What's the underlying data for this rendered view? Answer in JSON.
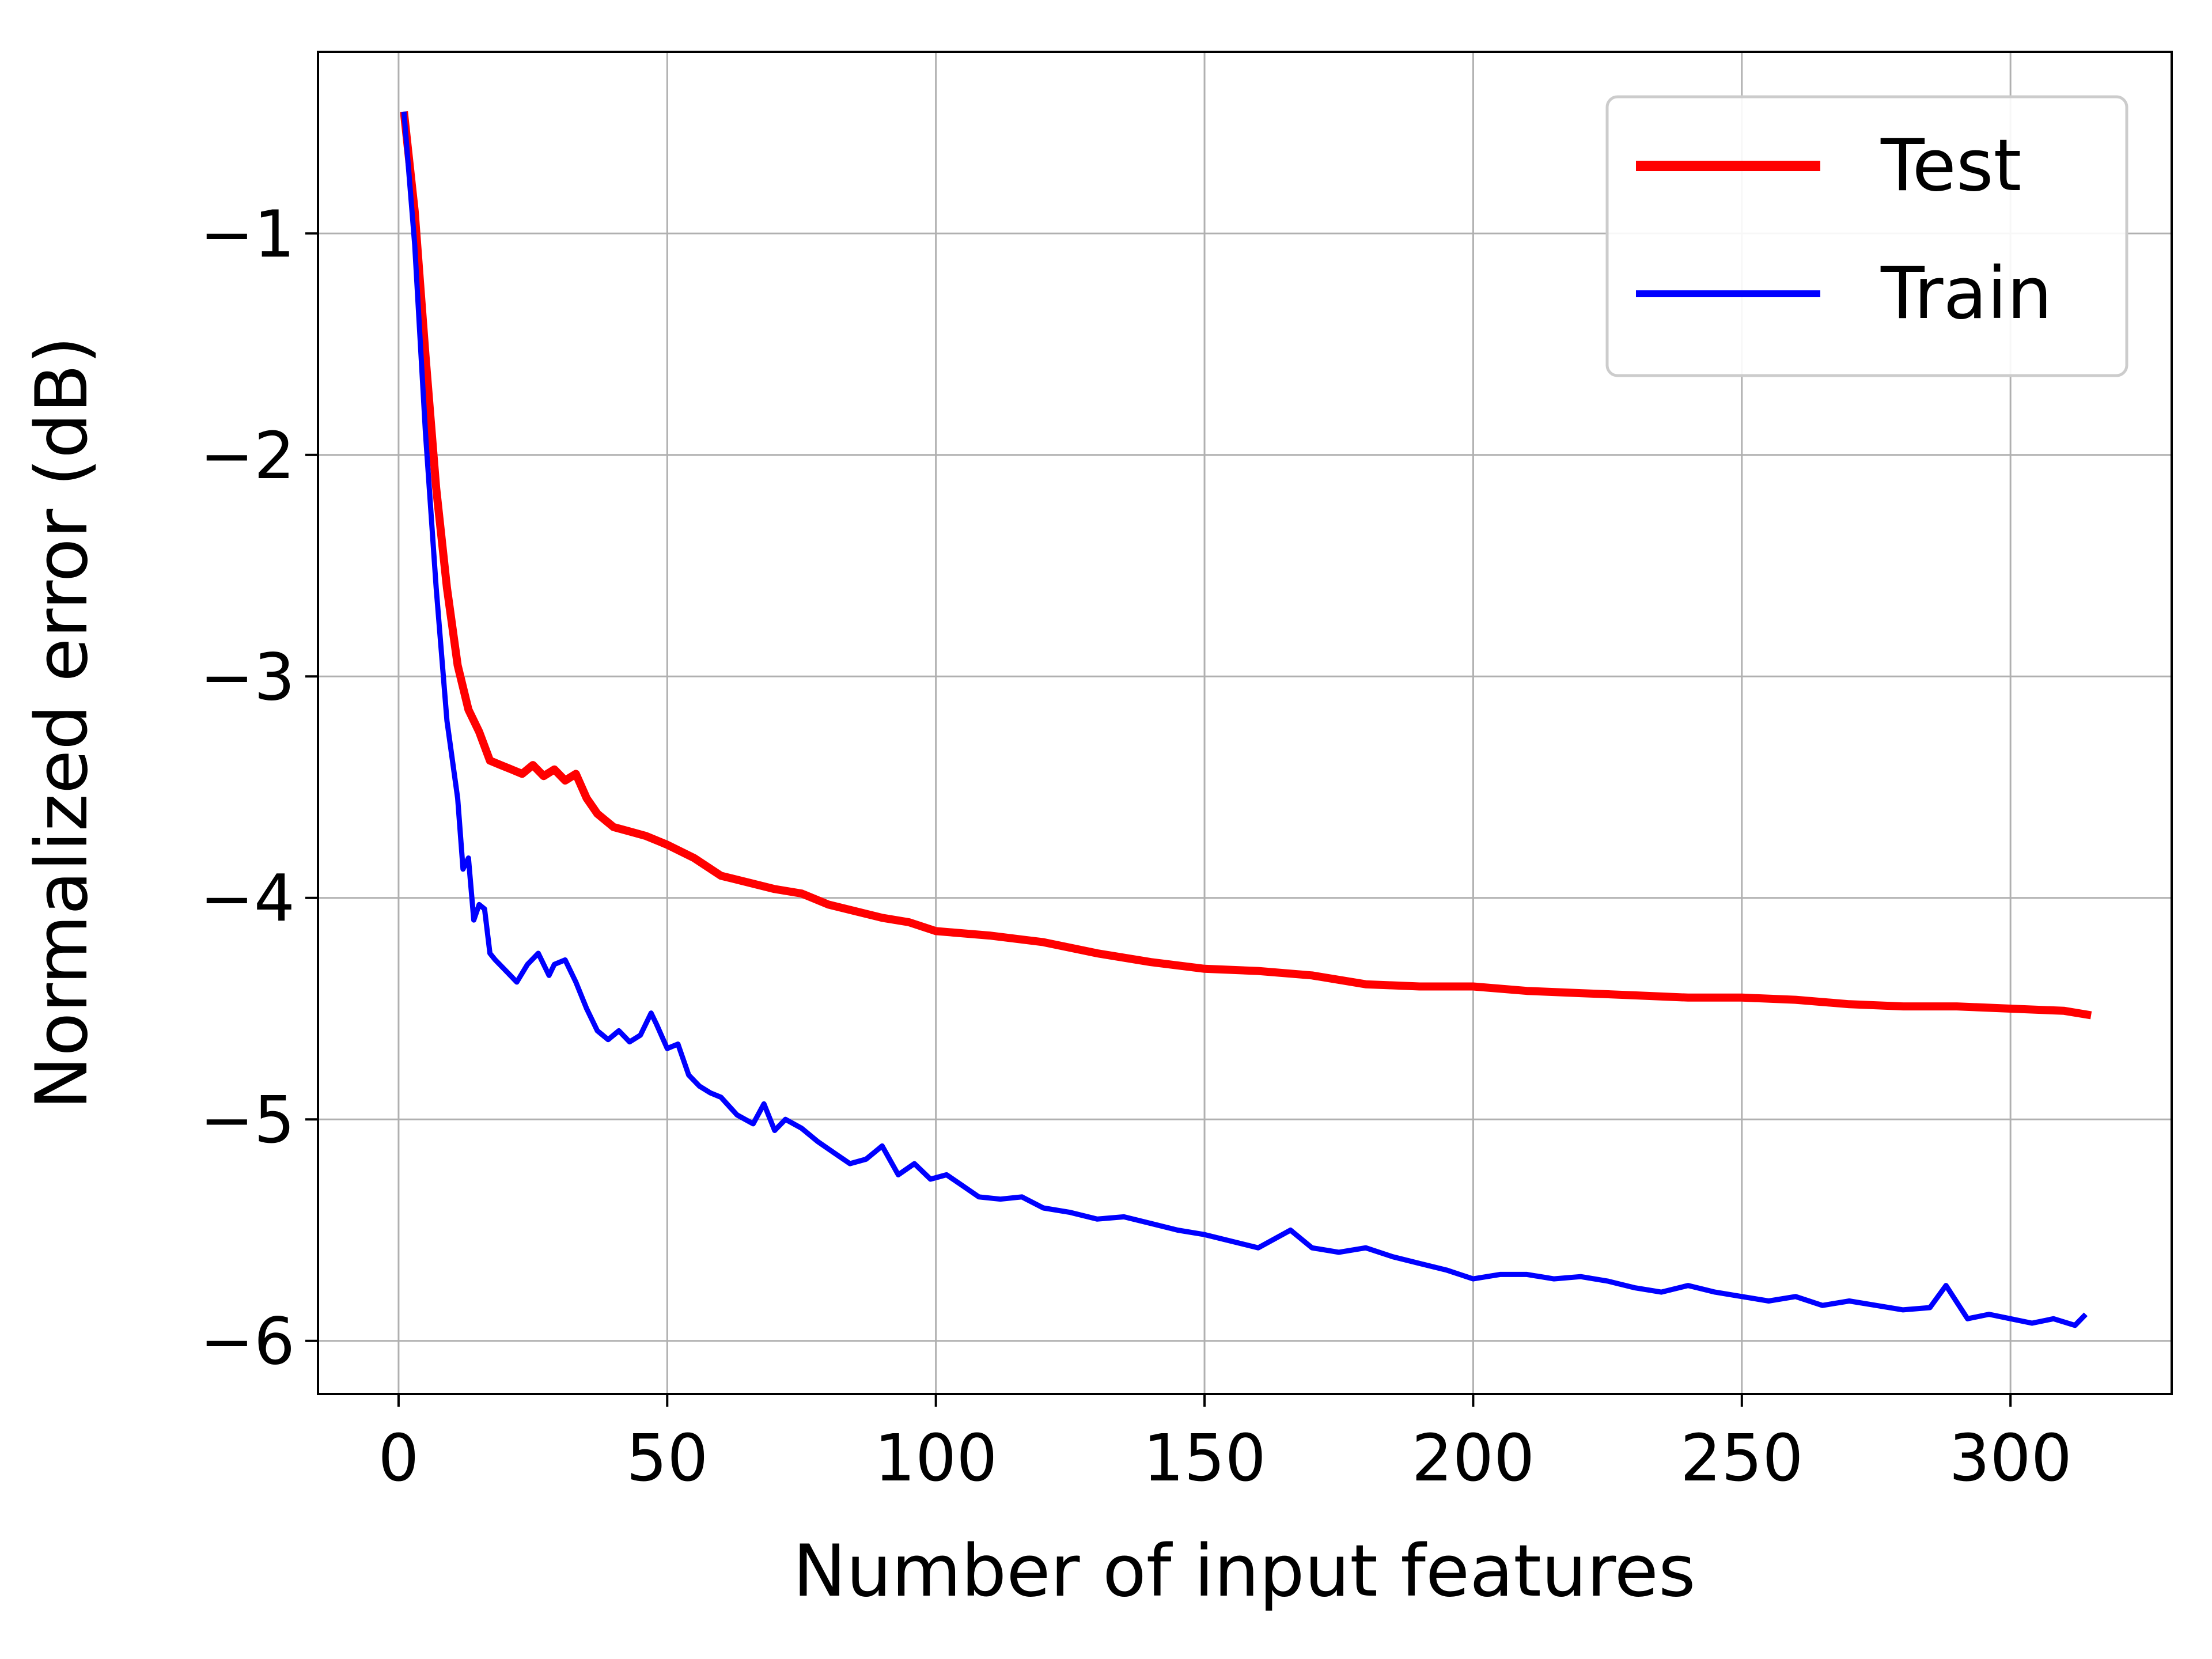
{
  "chart_data": {
    "type": "line",
    "title": "",
    "xlabel": "Number of input features",
    "ylabel": "Normalized error (dB)",
    "xlim": [
      -15,
      330
    ],
    "ylim": [
      -6.24,
      -0.18
    ],
    "xticks": [
      0,
      50,
      100,
      150,
      200,
      250,
      300
    ],
    "yticks": [
      -1,
      -2,
      -3,
      -4,
      -5,
      -6
    ],
    "xtick_labels": [
      "0",
      "50",
      "100",
      "150",
      "200",
      "250",
      "300"
    ],
    "ytick_labels": [
      "−1",
      "−2",
      "−3",
      "−4",
      "−5",
      "−6"
    ],
    "grid": true,
    "legend_position": "top-right",
    "series": [
      {
        "name": "Test",
        "color": "#ff0000",
        "x": [
          1,
          3,
          5,
          7,
          9,
          11,
          13,
          15,
          17,
          19,
          21,
          23,
          25,
          27,
          29,
          31,
          33,
          35,
          37,
          40,
          43,
          46,
          50,
          55,
          60,
          65,
          70,
          75,
          80,
          85,
          90,
          95,
          100,
          110,
          120,
          130,
          140,
          150,
          160,
          170,
          180,
          190,
          200,
          210,
          220,
          230,
          240,
          250,
          260,
          270,
          280,
          290,
          300,
          310,
          315
        ],
        "y": [
          -0.45,
          -0.9,
          -1.55,
          -2.15,
          -2.6,
          -2.95,
          -3.15,
          -3.25,
          -3.38,
          -3.4,
          -3.42,
          -3.44,
          -3.4,
          -3.45,
          -3.42,
          -3.47,
          -3.44,
          -3.55,
          -3.62,
          -3.68,
          -3.7,
          -3.72,
          -3.76,
          -3.82,
          -3.9,
          -3.93,
          -3.96,
          -3.98,
          -4.03,
          -4.06,
          -4.09,
          -4.11,
          -4.15,
          -4.17,
          -4.2,
          -4.25,
          -4.29,
          -4.32,
          -4.33,
          -4.35,
          -4.39,
          -4.4,
          -4.4,
          -4.42,
          -4.43,
          -4.44,
          -4.45,
          -4.45,
          -4.46,
          -4.48,
          -4.49,
          -4.49,
          -4.5,
          -4.51,
          -4.53
        ]
      },
      {
        "name": "Train",
        "color": "#0000ff",
        "x": [
          1,
          3,
          5,
          7,
          9,
          11,
          12,
          13,
          14,
          15,
          16,
          17,
          18,
          20,
          22,
          24,
          26,
          28,
          29,
          31,
          33,
          35,
          37,
          39,
          41,
          43,
          45,
          47,
          48,
          50,
          52,
          54,
          56,
          58,
          60,
          63,
          66,
          68,
          70,
          72,
          75,
          78,
          81,
          84,
          87,
          90,
          93,
          96,
          99,
          102,
          105,
          108,
          112,
          116,
          120,
          125,
          130,
          135,
          140,
          145,
          150,
          155,
          160,
          166,
          170,
          175,
          180,
          185,
          190,
          195,
          200,
          205,
          210,
          215,
          220,
          225,
          230,
          235,
          240,
          245,
          250,
          255,
          260,
          265,
          270,
          275,
          280,
          285,
          288,
          292,
          296,
          300,
          304,
          308,
          312,
          314
        ],
        "y": [
          -0.45,
          -1.05,
          -1.9,
          -2.6,
          -3.2,
          -3.55,
          -3.87,
          -3.82,
          -4.1,
          -4.03,
          -4.05,
          -4.25,
          -4.28,
          -4.33,
          -4.38,
          -4.3,
          -4.25,
          -4.35,
          -4.3,
          -4.28,
          -4.38,
          -4.5,
          -4.6,
          -4.64,
          -4.6,
          -4.65,
          -4.62,
          -4.52,
          -4.57,
          -4.68,
          -4.66,
          -4.8,
          -4.85,
          -4.88,
          -4.9,
          -4.98,
          -5.02,
          -4.93,
          -5.05,
          -5.0,
          -5.04,
          -5.1,
          -5.15,
          -5.2,
          -5.18,
          -5.12,
          -5.25,
          -5.2,
          -5.27,
          -5.25,
          -5.3,
          -5.35,
          -5.36,
          -5.35,
          -5.4,
          -5.42,
          -5.45,
          -5.44,
          -5.47,
          -5.5,
          -5.52,
          -5.55,
          -5.58,
          -5.5,
          -5.58,
          -5.6,
          -5.58,
          -5.62,
          -5.65,
          -5.68,
          -5.72,
          -5.7,
          -5.7,
          -5.72,
          -5.71,
          -5.73,
          -5.76,
          -5.78,
          -5.75,
          -5.78,
          -5.8,
          -5.82,
          -5.8,
          -5.84,
          -5.82,
          -5.84,
          -5.86,
          -5.85,
          -5.75,
          -5.9,
          -5.88,
          -5.9,
          -5.92,
          -5.9,
          -5.93,
          -5.88
        ]
      }
    ]
  }
}
